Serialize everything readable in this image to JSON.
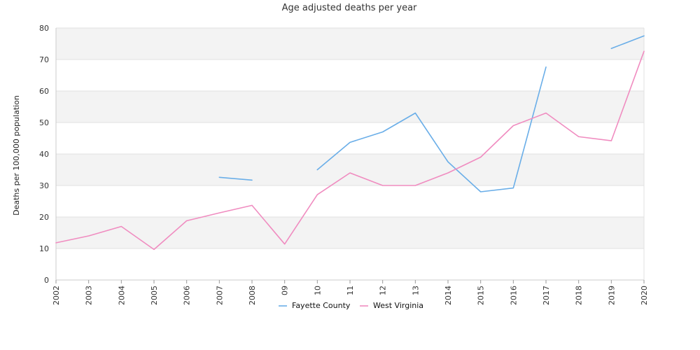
{
  "chart_data": {
    "type": "line",
    "title": "Age adjusted deaths per year",
    "ylabel": "Deaths per 100,000 population",
    "xlabel": "",
    "ylim": [
      0,
      80
    ],
    "yticks": [
      0,
      10,
      20,
      30,
      40,
      50,
      60,
      70,
      80
    ],
    "categories": [
      "2002",
      "2003",
      "2004",
      "2005",
      "2006",
      "2007",
      "2008",
      "09",
      "10",
      "11",
      "12",
      "13",
      "2014",
      "2015",
      "2016",
      "2017",
      "2018",
      "2019",
      "2020"
    ],
    "grid": "alternating horizontal bands",
    "legend_position": "bottom-center",
    "series": [
      {
        "name": "Fayette County",
        "color": "#6aaee8",
        "values": [
          null,
          null,
          null,
          null,
          null,
          32.6,
          31.7,
          null,
          35.0,
          43.7,
          47.0,
          53.0,
          37.5,
          28.0,
          29.2,
          67.6,
          null,
          73.5,
          77.5
        ]
      },
      {
        "name": "West Virginia",
        "color": "#f08cc0",
        "values": [
          11.8,
          14.0,
          17.0,
          9.7,
          18.8,
          21.3,
          23.7,
          11.4,
          27.1,
          34.0,
          30.0,
          30.0,
          34.0,
          39.0,
          49.0,
          53.0,
          45.5,
          44.2,
          72.6
        ]
      }
    ]
  }
}
